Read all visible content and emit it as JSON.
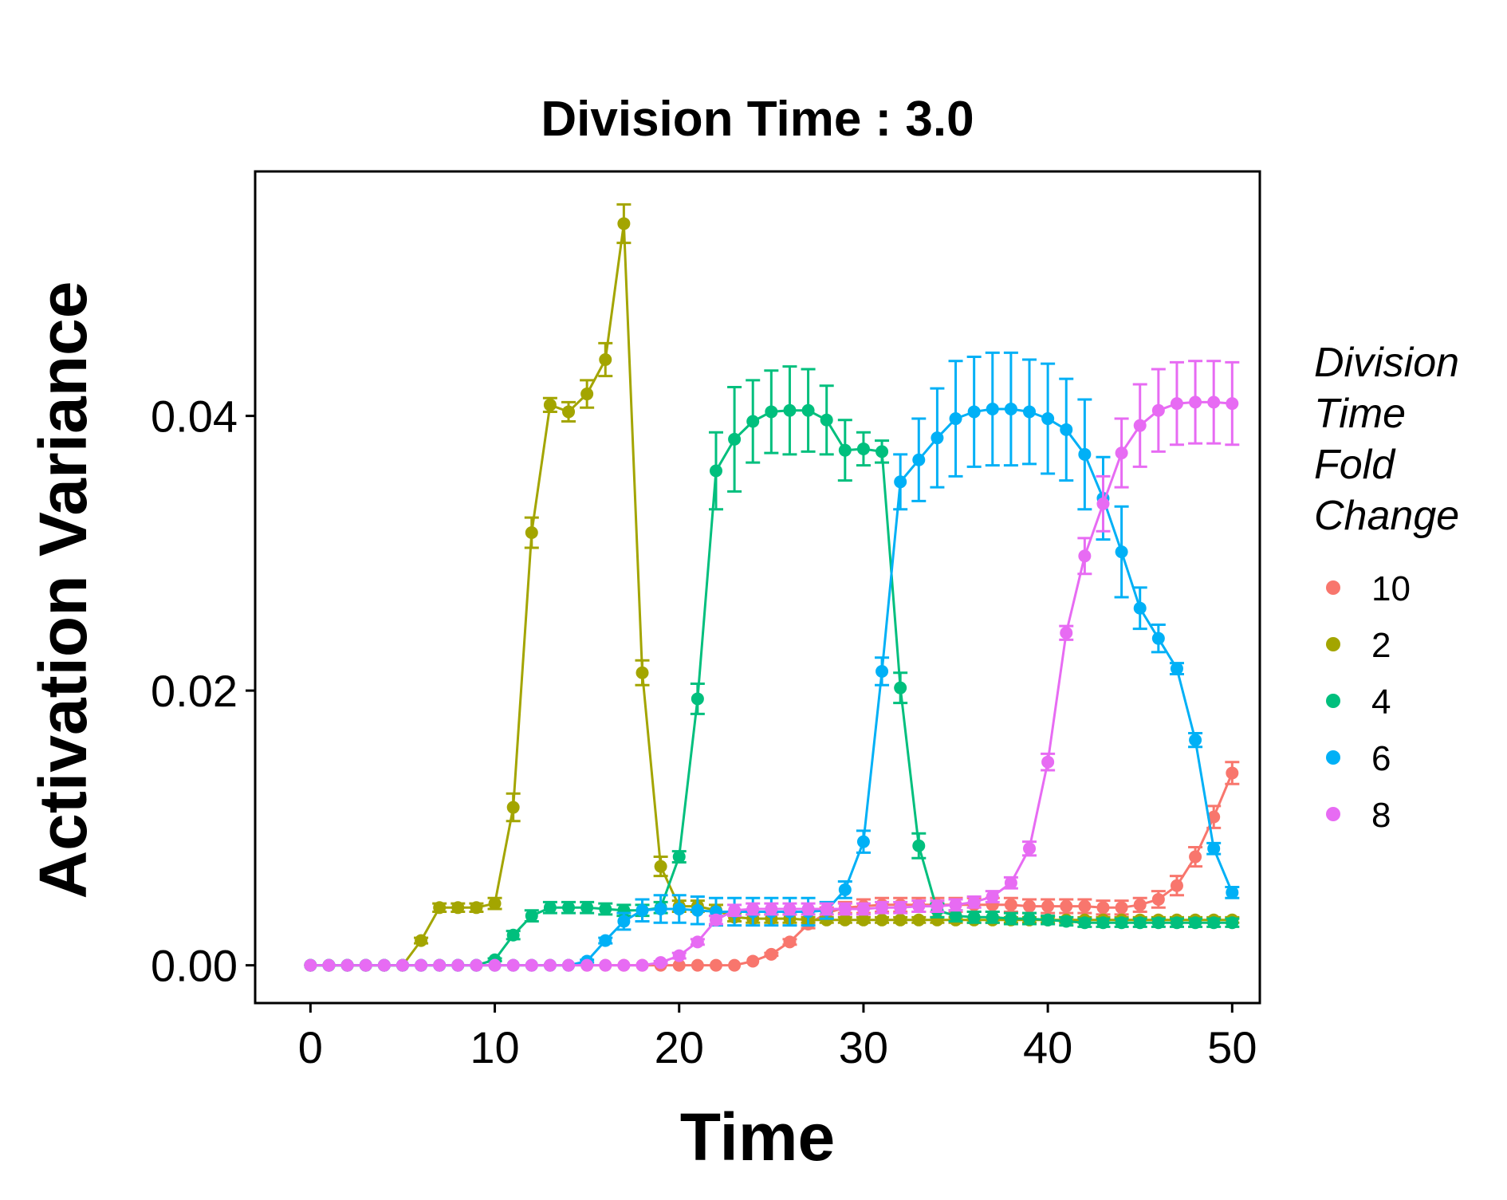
{
  "chart_data": {
    "type": "line",
    "title": "Division Time : 3.0",
    "xlabel": "Time",
    "ylabel": "Activation Variance",
    "xlim": [
      -3,
      51.5
    ],
    "ylim": [
      -0.00275,
      0.0578
    ],
    "xticks": [
      0,
      10,
      20,
      30,
      40,
      50
    ],
    "xtick_labels": [
      "0",
      "10",
      "20",
      "30",
      "40",
      "50"
    ],
    "yticks": [
      0,
      0.02,
      0.04
    ],
    "ytick_labels": [
      "0.00",
      "0.02",
      "0.04"
    ],
    "grid": false,
    "legend": {
      "title_lines": [
        "Division",
        "Time",
        "Fold",
        "Change"
      ],
      "position": "right"
    },
    "x": [
      0,
      1,
      2,
      3,
      4,
      5,
      6,
      7,
      8,
      9,
      10,
      11,
      12,
      13,
      14,
      15,
      16,
      17,
      18,
      19,
      20,
      21,
      22,
      23,
      24,
      25,
      26,
      27,
      28,
      29,
      30,
      31,
      32,
      33,
      34,
      35,
      36,
      37,
      38,
      39,
      40,
      41,
      42,
      43,
      44,
      45,
      46,
      47,
      48,
      49,
      50
    ],
    "series": [
      {
        "name": "10",
        "color": "#F8766D",
        "values": [
          0,
          0,
          0,
          0,
          0,
          0,
          0,
          0,
          0,
          0,
          0,
          0,
          0,
          0,
          0,
          0,
          0,
          0,
          0,
          0,
          0,
          0,
          0,
          0,
          0.0003,
          0.0008,
          0.0017,
          0.003,
          0.0038,
          0.0042,
          0.0043,
          0.0044,
          0.0044,
          0.0044,
          0.0044,
          0.0044,
          0.0044,
          0.0044,
          0.0044,
          0.0043,
          0.0043,
          0.0043,
          0.0043,
          0.0042,
          0.0042,
          0.0044,
          0.0048,
          0.0058,
          0.0079,
          0.0108,
          0.014
        ],
        "errors": [
          0,
          0,
          0,
          0,
          0,
          0,
          0,
          0,
          0,
          0,
          0,
          0,
          0,
          0,
          0,
          0,
          0,
          0,
          0,
          0,
          0,
          0,
          0,
          0,
          0,
          0.0001,
          0.0002,
          0.0003,
          0.0004,
          0.0004,
          0.0005,
          0.0005,
          0.0005,
          0.0005,
          0.0005,
          0.0005,
          0.0005,
          0.0005,
          0.0005,
          0.0005,
          0.0005,
          0.0005,
          0.0005,
          0.0005,
          0.0005,
          0.0005,
          0.0006,
          0.0007,
          0.0007,
          0.0008,
          0.0008
        ]
      },
      {
        "name": "2",
        "color": "#A3A500",
        "values": [
          0,
          0,
          0,
          0,
          0,
          0,
          0.0018,
          0.0042,
          0.0042,
          0.0042,
          0.0045,
          0.0115,
          0.0315,
          0.0408,
          0.0403,
          0.0416,
          0.0441,
          0.054,
          0.0213,
          0.0072,
          0.0043,
          0.0043,
          0.004,
          0.0035,
          0.0034,
          0.0034,
          0.0034,
          0.0033,
          0.0033,
          0.0033,
          0.0033,
          0.0033,
          0.0033,
          0.0033,
          0.0033,
          0.0033,
          0.0033,
          0.0033,
          0.0033,
          0.0033,
          0.0033,
          0.0033,
          0.0033,
          0.0033,
          0.0033,
          0.0033,
          0.0033,
          0.0033,
          0.0033,
          0.0033,
          0.0033
        ],
        "errors": [
          0,
          0,
          0,
          0,
          0,
          0,
          0.0002,
          0.0003,
          0.0003,
          0.0003,
          0.0004,
          0.001,
          0.0011,
          0.0005,
          0.0007,
          0.001,
          0.0012,
          0.0014,
          0.0009,
          0.0007,
          0.0004,
          0.0004,
          0.0004,
          0.0003,
          0.0003,
          0.0003,
          0.0003,
          0.0002,
          0.0002,
          0.0002,
          0.0002,
          0.0002,
          0.0002,
          0.0002,
          0.0002,
          0.0002,
          0.0002,
          0.0002,
          0.0002,
          0.0002,
          0.0002,
          0.0002,
          0.0002,
          0.0002,
          0.0002,
          0.0002,
          0.0002,
          0.0002,
          0.0002,
          0.0002,
          0.0002
        ]
      },
      {
        "name": "4",
        "color": "#00BF7D",
        "values": [
          0,
          0,
          0,
          0,
          0,
          0,
          0,
          0,
          0,
          0,
          0.0004,
          0.0022,
          0.0036,
          0.0042,
          0.0042,
          0.0042,
          0.0041,
          0.004,
          0.004,
          0.0042,
          0.0079,
          0.0194,
          0.036,
          0.0383,
          0.0396,
          0.0403,
          0.0404,
          0.0404,
          0.0397,
          0.0375,
          0.0376,
          0.0374,
          0.0202,
          0.0087,
          0.004,
          0.0036,
          0.0035,
          0.0035,
          0.0034,
          0.0034,
          0.0033,
          0.0032,
          0.0031,
          0.0031,
          0.0031,
          0.0031,
          0.0031,
          0.0031,
          0.0031,
          0.0031,
          0.0031
        ],
        "errors": [
          0,
          0,
          0,
          0,
          0,
          0,
          0,
          0,
          0,
          0,
          0.0001,
          0.0003,
          0.0004,
          0.0004,
          0.0004,
          0.0004,
          0.0004,
          0.0004,
          0.0004,
          0.0004,
          0.0004,
          0.0011,
          0.0028,
          0.0038,
          0.003,
          0.003,
          0.0032,
          0.003,
          0.0025,
          0.0022,
          0.0012,
          0.0008,
          0.0011,
          0.0009,
          0.0005,
          0.0004,
          0.0004,
          0.0004,
          0.0004,
          0.0004,
          0.0003,
          0.0003,
          0.0003,
          0.0003,
          0.0003,
          0.0003,
          0.0003,
          0.0003,
          0.0003,
          0.0003,
          0.0003
        ]
      },
      {
        "name": "6",
        "color": "#00B0F6",
        "values": [
          0,
          0,
          0,
          0,
          0,
          0,
          0,
          0,
          0,
          0,
          0,
          0,
          0,
          0,
          0,
          0.0003,
          0.0018,
          0.0032,
          0.004,
          0.0041,
          0.0041,
          0.004,
          0.0039,
          0.0039,
          0.0039,
          0.0039,
          0.0039,
          0.0039,
          0.004,
          0.0055,
          0.009,
          0.0214,
          0.0352,
          0.0368,
          0.0384,
          0.0398,
          0.0403,
          0.0405,
          0.0405,
          0.0403,
          0.0398,
          0.039,
          0.0372,
          0.034,
          0.0301,
          0.026,
          0.0238,
          0.0216,
          0.0164,
          0.0085,
          0.0053
        ],
        "errors": [
          0,
          0,
          0,
          0,
          0,
          0,
          0,
          0,
          0,
          0,
          0,
          0,
          0,
          0,
          0,
          0.0001,
          0.0002,
          0.0006,
          0.0008,
          0.001,
          0.001,
          0.001,
          0.001,
          0.001,
          0.001,
          0.001,
          0.001,
          0.001,
          0.0006,
          0.0006,
          0.0008,
          0.001,
          0.002,
          0.003,
          0.0036,
          0.0042,
          0.004,
          0.0041,
          0.0041,
          0.0038,
          0.004,
          0.0037,
          0.004,
          0.003,
          0.0033,
          0.0015,
          0.001,
          0.0004,
          0.0005,
          0.0004,
          0.0004
        ]
      },
      {
        "name": "8",
        "color": "#E76BF3",
        "values": [
          0,
          0,
          0,
          0,
          0,
          0,
          0,
          0,
          0,
          0,
          0,
          0,
          0,
          0,
          0,
          0,
          0,
          0,
          0,
          0.0002,
          0.0007,
          0.0017,
          0.0033,
          0.004,
          0.0041,
          0.0041,
          0.0041,
          0.0041,
          0.0041,
          0.0041,
          0.0041,
          0.0042,
          0.0042,
          0.0043,
          0.0043,
          0.0044,
          0.0046,
          0.005,
          0.006,
          0.0085,
          0.0148,
          0.0242,
          0.0298,
          0.0336,
          0.0373,
          0.0393,
          0.0404,
          0.0409,
          0.041,
          0.041,
          0.0409
        ],
        "errors": [
          0,
          0,
          0,
          0,
          0,
          0,
          0,
          0,
          0,
          0,
          0,
          0,
          0,
          0,
          0,
          0,
          0,
          0,
          0,
          0.0001,
          0.0002,
          0.0002,
          0.0003,
          0.0004,
          0.0004,
          0.0004,
          0.0004,
          0.0004,
          0.0004,
          0.0004,
          0.0004,
          0.0004,
          0.0004,
          0.0004,
          0.0004,
          0.0004,
          0.0004,
          0.0004,
          0.0004,
          0.0005,
          0.0006,
          0.0005,
          0.0013,
          0.002,
          0.0025,
          0.003,
          0.003,
          0.003,
          0.003,
          0.003,
          0.003
        ]
      }
    ]
  }
}
